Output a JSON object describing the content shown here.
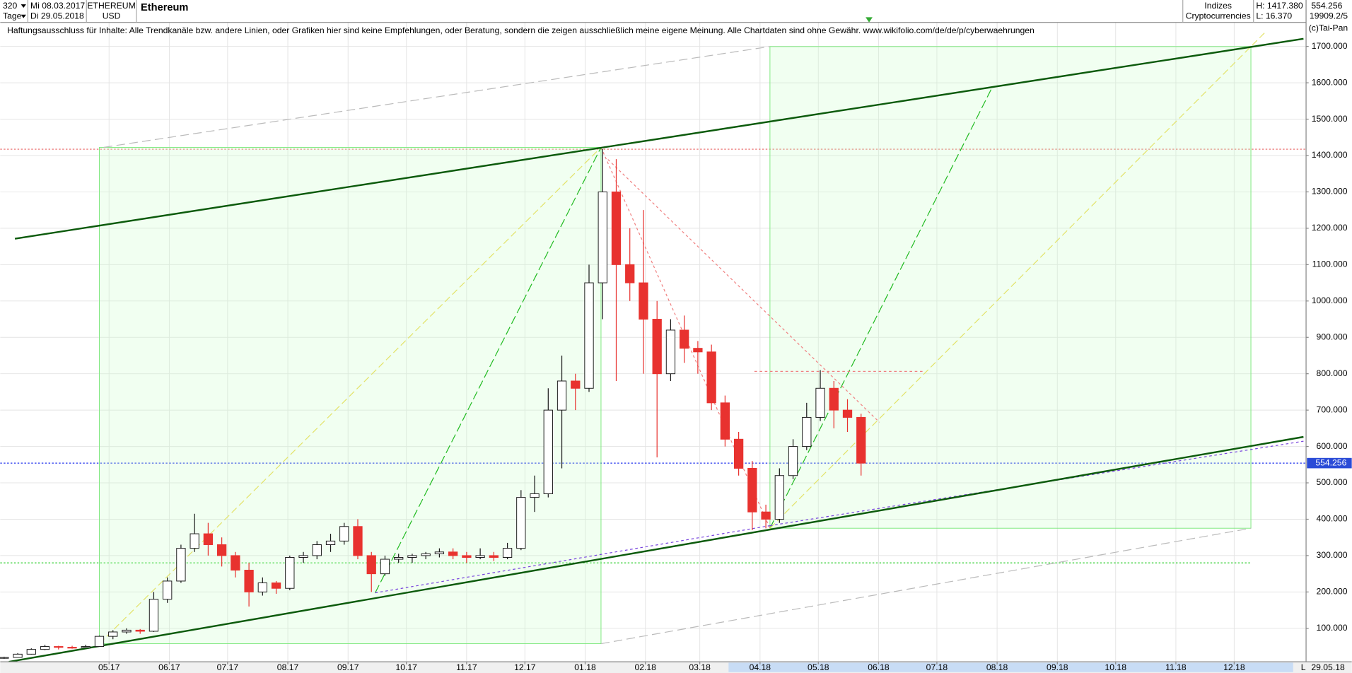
{
  "header": {
    "period": "320",
    "unit": "Tage",
    "start": "Mi 08.03.2017",
    "end": "Di 29.05.2018",
    "symbol": "ETHEREUM",
    "currency": "USD",
    "name": "Ethereum",
    "group": "Indizes",
    "subgroup": "Cryptocurrencies",
    "high": "H: 1417.380",
    "low": "L: 16.370",
    "last": "554.256",
    "volume": "19909.2/5",
    "copyright": "(c)Tai-Pan"
  },
  "disclaimer": "Haftungsausschluss für Inhalte: Alle Trendkanäle bzw. andere Linien, oder Grafiken hier sind keine Empfehlungen, oder Beratung, sondern die zeigen ausschließlich meine eigene Meinung. Alle Chartdaten sind ohne Gewähr.  www.wikifolio.com/de/de/p/cyberwaehrungen",
  "footer": {
    "scale": "L",
    "date": "29.05.18"
  },
  "chart_data": {
    "type": "candlestick",
    "up_color": "#1a1a1a",
    "down_color": "#e8322f",
    "x": [
      0,
      7,
      14,
      21,
      28,
      35,
      42,
      49,
      56,
      63,
      70,
      77,
      84,
      91,
      98,
      105,
      112,
      119,
      126,
      133,
      140,
      147,
      154,
      161,
      168,
      175,
      182,
      189,
      196,
      203,
      210,
      217,
      224,
      231,
      238,
      245,
      252,
      259,
      266,
      273,
      280,
      287,
      294,
      301,
      308,
      315,
      322,
      329,
      336,
      343,
      350,
      357,
      364,
      371,
      378,
      385,
      392,
      399,
      406,
      413,
      420,
      427,
      434,
      441
    ],
    "open": [
      18,
      20,
      29,
      42,
      50,
      48,
      47,
      50,
      78,
      90,
      95,
      92,
      180,
      230,
      320,
      360,
      330,
      300,
      260,
      200,
      225,
      210,
      295,
      300,
      330,
      340,
      380,
      300,
      250,
      290,
      295,
      300,
      305,
      310,
      300,
      295,
      300,
      295,
      320,
      460,
      470,
      700,
      780,
      760,
      1050,
      1300,
      1100,
      1050,
      950,
      800,
      920,
      870,
      860,
      720,
      620,
      540,
      420,
      400,
      520,
      600,
      680,
      760,
      700,
      680
    ],
    "high": [
      22,
      32,
      45,
      55,
      52,
      52,
      55,
      80,
      95,
      100,
      98,
      200,
      240,
      330,
      415,
      390,
      350,
      310,
      280,
      240,
      230,
      300,
      310,
      340,
      360,
      390,
      400,
      310,
      300,
      305,
      305,
      310,
      320,
      320,
      310,
      320,
      310,
      335,
      480,
      520,
      760,
      850,
      800,
      1100,
      1417.38,
      1390,
      1200,
      1250,
      1000,
      950,
      960,
      890,
      880,
      740,
      640,
      560,
      440,
      540,
      620,
      720,
      810,
      780,
      730,
      690
    ],
    "low": [
      16.37,
      20,
      28,
      40,
      42,
      44,
      46,
      50,
      70,
      85,
      85,
      90,
      170,
      225,
      310,
      300,
      270,
      240,
      160,
      190,
      195,
      205,
      280,
      290,
      310,
      330,
      290,
      200,
      245,
      280,
      280,
      290,
      295,
      290,
      280,
      290,
      285,
      290,
      315,
      420,
      460,
      540,
      700,
      750,
      950,
      780,
      1000,
      800,
      570,
      780,
      830,
      800,
      700,
      600,
      520,
      370,
      375,
      390,
      510,
      590,
      670,
      650,
      640,
      520
    ],
    "close": [
      20,
      29,
      42,
      50,
      48,
      47,
      50,
      78,
      90,
      95,
      92,
      180,
      230,
      320,
      360,
      330,
      300,
      260,
      200,
      225,
      210,
      295,
      300,
      330,
      340,
      380,
      300,
      250,
      290,
      295,
      300,
      305,
      310,
      300,
      295,
      300,
      295,
      320,
      460,
      470,
      700,
      780,
      760,
      1050,
      1300,
      1100,
      1050,
      950,
      800,
      920,
      870,
      860,
      720,
      620,
      540,
      420,
      400,
      520,
      600,
      680,
      760,
      700,
      680,
      554.256
    ],
    "xlim": [
      -2,
      670
    ],
    "xticks": [
      {
        "value": 54,
        "label": "05.17"
      },
      {
        "value": 85,
        "label": "06.17"
      },
      {
        "value": 115,
        "label": "07.17"
      },
      {
        "value": 146,
        "label": "08.17"
      },
      {
        "value": 177,
        "label": "09.17"
      },
      {
        "value": 207,
        "label": "10.17"
      },
      {
        "value": 238,
        "label": "11.17"
      },
      {
        "value": 268,
        "label": "12.17"
      },
      {
        "value": 299,
        "label": "01.18"
      },
      {
        "value": 330,
        "label": "02.18"
      },
      {
        "value": 358,
        "label": "03.18"
      },
      {
        "value": 389,
        "label": "04.18"
      },
      {
        "value": 419,
        "label": "05.18"
      },
      {
        "value": 450,
        "label": "06.18"
      },
      {
        "value": 480,
        "label": "07.18"
      },
      {
        "value": 511,
        "label": "08.18"
      },
      {
        "value": 542,
        "label": "09.18"
      },
      {
        "value": 572,
        "label": "10.18"
      },
      {
        "value": 603,
        "label": "11.18"
      },
      {
        "value": 633,
        "label": "12.18"
      }
    ],
    "ylim": [
      8,
      1766
    ],
    "yticks": [
      {
        "value": 100,
        "label": "100.000"
      },
      {
        "value": 200,
        "label": "200.000"
      },
      {
        "value": 300,
        "label": "300.000"
      },
      {
        "value": 400,
        "label": "400.000"
      },
      {
        "value": 500,
        "label": "500.000"
      },
      {
        "value": 600,
        "label": "600.000"
      },
      {
        "value": 700,
        "label": "700.000"
      },
      {
        "value": 800,
        "label": "800.000"
      },
      {
        "value": 900,
        "label": "900.000"
      },
      {
        "value": 1000,
        "label": "1000.000"
      },
      {
        "value": 1100,
        "label": "1100.000"
      },
      {
        "value": 1200,
        "label": "1200.000"
      },
      {
        "value": 1300,
        "label": "1300.000"
      },
      {
        "value": 1400,
        "label": "1400.000"
      },
      {
        "value": 1500,
        "label": "1500.000"
      },
      {
        "value": 1600,
        "label": "1600.000"
      },
      {
        "value": 1700,
        "label": "1700.000"
      }
    ],
    "grid": true
  }
}
